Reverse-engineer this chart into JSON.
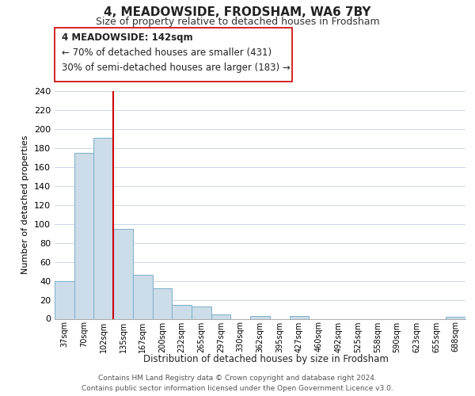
{
  "title": "4, MEADOWSIDE, FRODSHAM, WA6 7BY",
  "subtitle": "Size of property relative to detached houses in Frodsham",
  "xlabel": "Distribution of detached houses by size in Frodsham",
  "ylabel": "Number of detached properties",
  "bin_labels": [
    "37sqm",
    "70sqm",
    "102sqm",
    "135sqm",
    "167sqm",
    "200sqm",
    "232sqm",
    "265sqm",
    "297sqm",
    "330sqm",
    "362sqm",
    "395sqm",
    "427sqm",
    "460sqm",
    "492sqm",
    "525sqm",
    "558sqm",
    "590sqm",
    "623sqm",
    "655sqm",
    "688sqm"
  ],
  "bar_heights": [
    40,
    175,
    191,
    95,
    46,
    32,
    15,
    13,
    5,
    0,
    3,
    0,
    3,
    0,
    0,
    0,
    0,
    0,
    0,
    0,
    2
  ],
  "bar_color": "#ccdce8",
  "bar_edge_color": "#7bafc8",
  "vline_color": "#cc0000",
  "ylim": [
    0,
    240
  ],
  "yticks": [
    0,
    20,
    40,
    60,
    80,
    100,
    120,
    140,
    160,
    180,
    200,
    220,
    240
  ],
  "annotation_line1": "4 MEADOWSIDE: 142sqm",
  "annotation_line2": "← 70% of detached houses are smaller (431)",
  "annotation_line3": "30% of semi-detached houses are larger (183) →",
  "footer_text": "Contains HM Land Registry data © Crown copyright and database right 2024.\nContains public sector information licensed under the Open Government Licence v3.0.",
  "background_color": "#ffffff",
  "grid_color": "#c8d8e8"
}
